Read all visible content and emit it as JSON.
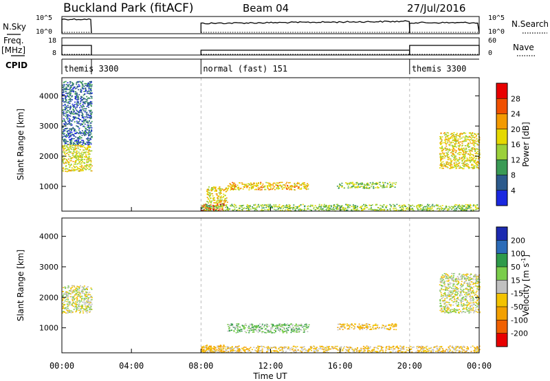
{
  "header": {
    "station": "Buckland Park (fitACF)",
    "beam": "Beam 04",
    "date": "27/Jul/2016"
  },
  "left_labels": {
    "nsky": "N.Sky",
    "freq": "Freq.",
    "freq_unit": "[MHz]",
    "cpid": "CPID"
  },
  "right_labels": {
    "nsearch": "N.Search",
    "nave": "Nave"
  },
  "nsky_ticks": [
    "10^5",
    "10^0"
  ],
  "nsearch_ticks": [
    "10^5",
    "10^0"
  ],
  "freq_ticks": [
    "18",
    "8"
  ],
  "nave_ticks": [
    "60",
    "0"
  ],
  "cpid_segments": [
    {
      "label": "themis 3300",
      "start_h": 0,
      "end_h": 1.7
    },
    {
      "label": "normal (fast) 151",
      "start_h": 8.0,
      "end_h": 20.0
    },
    {
      "label": "themis 3300",
      "start_h": 20.0,
      "end_h": 24.0
    }
  ],
  "operation_windows": [
    {
      "start_h": 0.0,
      "end_h": 1.7
    },
    {
      "start_h": 8.0,
      "end_h": 20.0
    },
    {
      "start_h": 20.0,
      "end_h": 24.0
    }
  ],
  "x_ticks": [
    "00:00",
    "04:00",
    "08:00",
    "12:00",
    "16:00",
    "20:00",
    "00:00"
  ],
  "x_label": "Time UT",
  "y_label": "Slant Range [km]",
  "y_ticks": [
    "4000",
    "3000",
    "2000",
    "1000"
  ],
  "power_colorbar": {
    "label": "Power [dB]",
    "ticks": [
      "28",
      "24",
      "20",
      "16",
      "12",
      "8",
      "4"
    ],
    "colors": [
      "#e80000",
      "#f05000",
      "#f39a00",
      "#e5d800",
      "#9bd03a",
      "#3a9a55",
      "#2c5a8c",
      "#1a28e0"
    ]
  },
  "velocity_colorbar": {
    "label": "Velocity [m s",
    "label_sup": "-1",
    "label_end": "]",
    "ticks": [
      "200",
      "100",
      "50",
      "15",
      "-15",
      "-50",
      "-100",
      "-200"
    ],
    "colors": [
      "#1c2ab0",
      "#2c6cb8",
      "#2e9a4a",
      "#7acd4c",
      "#c0c0c0",
      "#f3c300",
      "#f3a000",
      "#f06000",
      "#e80000"
    ]
  },
  "chart_data": [
    {
      "type": "heatmap",
      "panel": "power",
      "x_range_h": [
        0,
        24
      ],
      "y_range_km": [
        180,
        4600
      ],
      "regions": [
        {
          "t0": 0.0,
          "t1": 1.7,
          "r0": 1500,
          "r1": 2400,
          "value_db": 17
        },
        {
          "t0": 0.0,
          "t1": 1.7,
          "r0": 2400,
          "r1": 4500,
          "value_db": 6
        },
        {
          "t0": 8.0,
          "t1": 9.3,
          "r0": 200,
          "r1": 450,
          "value_db": 28
        },
        {
          "t0": 8.3,
          "t1": 9.5,
          "r0": 450,
          "r1": 1000,
          "value_db": 18
        },
        {
          "t0": 9.5,
          "t1": 14.2,
          "r0": 900,
          "r1": 1150,
          "value_db": 20
        },
        {
          "t0": 15.8,
          "t1": 19.2,
          "r0": 950,
          "r1": 1150,
          "value_db": 14
        },
        {
          "t0": 8.0,
          "t1": 24.0,
          "r0": 200,
          "r1": 420,
          "value_db": 14
        },
        {
          "t0": 21.7,
          "t1": 24.0,
          "r0": 1600,
          "r1": 2800,
          "value_db": 18
        }
      ]
    },
    {
      "type": "heatmap",
      "panel": "velocity",
      "x_range_h": [
        0,
        24
      ],
      "y_range_km": [
        180,
        4600
      ],
      "regions": [
        {
          "t0": 0.0,
          "t1": 1.7,
          "r0": 1500,
          "r1": 2400,
          "value_ms": 0
        },
        {
          "t0": 8.0,
          "t1": 9.3,
          "r0": 200,
          "r1": 450,
          "value_ms": -60
        },
        {
          "t0": 9.5,
          "t1": 14.2,
          "r0": 850,
          "r1": 1150,
          "value_ms": 30
        },
        {
          "t0": 15.8,
          "t1": 19.2,
          "r0": 950,
          "r1": 1150,
          "value_ms": -40
        },
        {
          "t0": 8.0,
          "t1": 24.0,
          "r0": 200,
          "r1": 420,
          "value_ms": -30
        },
        {
          "t0": 21.7,
          "t1": 24.0,
          "r0": 1500,
          "r1": 2800,
          "value_ms": 0
        }
      ]
    }
  ]
}
